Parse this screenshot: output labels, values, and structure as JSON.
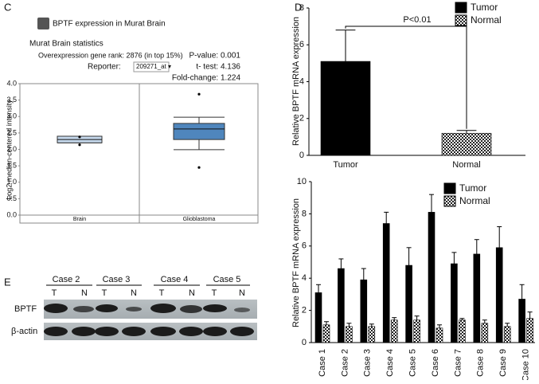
{
  "panels": [
    "C",
    "D",
    "E"
  ],
  "chart_data": [
    {
      "type": "box",
      "title": "BPTF expression in Murat Brain",
      "subtitle": "Murat Brain statistics",
      "annotations": [
        "Overexpression gene rank: 2876 (in top 15%)",
        "Reporter:",
        "209271_at ▾",
        "P-value: 0.001",
        "t- test: 4.136",
        "Fold-change: 1.224"
      ],
      "ylabel": "Log2 median-centered intensity",
      "categories": [
        "Brain",
        "Glioblastoma"
      ],
      "boxes": [
        {
          "min": 2.2,
          "q1": 2.2,
          "median": 2.3,
          "q3": 2.4,
          "max": 2.4,
          "outliers": [
            2.38,
            2.14
          ],
          "color": "#c5d8ec"
        },
        {
          "min": 1.99,
          "q1": 2.3,
          "median": 2.62,
          "q3": 2.79,
          "max": 2.98,
          "outliers": [
            3.68,
            1.45
          ],
          "color": "#4f86bd"
        }
      ],
      "ylim": [
        0,
        4
      ],
      "yticks": [
        {
          "value": 0,
          "label": "0.0"
        },
        0.5,
        {
          "value": 1,
          "label": "1.0"
        },
        1.5,
        {
          "value": 2,
          "label": "2.0"
        },
        2.5,
        {
          "value": 3,
          "label": "3.0"
        },
        3.5,
        {
          "value": 4,
          "label": "4.0"
        }
      ]
    },
    {
      "type": "bar",
      "ylabel": "Relative BPTF mRNA expression",
      "annotations": [
        "P<0.01"
      ],
      "categories": [
        "Tumor",
        "Normal"
      ],
      "series": [
        {
          "name": "Tumor",
          "color": "#000000",
          "values": [
            5.1,
            null
          ],
          "errors": [
            1.7,
            null
          ]
        },
        {
          "name": "Normal",
          "color": "#000000",
          "pattern": "checkered",
          "values": [
            null,
            1.2
          ],
          "errors": [
            null,
            0.15
          ]
        }
      ],
      "ylim": [
        0,
        8
      ],
      "yticks": [
        0,
        2,
        4,
        6,
        8
      ]
    },
    {
      "type": "bar",
      "ylabel": "Relative BPTF mRNA expression",
      "categories": [
        "Case 1",
        "Case 2",
        "Case 3",
        "Case 4",
        "Case 5",
        "Case 6",
        "Case 7",
        "Case 8",
        "Case 9",
        "Case 10"
      ],
      "series": [
        {
          "name": "Tumor",
          "color": "#000000",
          "values": [
            3.1,
            4.6,
            3.9,
            7.4,
            4.8,
            8.1,
            4.9,
            5.5,
            5.9,
            2.7
          ],
          "errors": [
            0.5,
            0.6,
            0.7,
            0.7,
            1.1,
            1.1,
            0.7,
            0.9,
            1.3,
            0.9
          ]
        },
        {
          "name": "Normal",
          "color": "#000000",
          "pattern": "checkered",
          "values": [
            1.1,
            1.0,
            1.0,
            1.4,
            1.4,
            0.9,
            1.4,
            1.2,
            1.0,
            1.5
          ],
          "errors": [
            0.2,
            0.2,
            0.15,
            0.15,
            0.25,
            0.2,
            0.1,
            0.2,
            0.2,
            0.4
          ]
        }
      ],
      "ylim": [
        0,
        10
      ],
      "yticks": [
        0,
        2,
        4,
        6,
        8,
        10
      ]
    }
  ],
  "western_blot": {
    "cases": [
      "Case 2",
      "Case 3",
      "Case 4",
      "Case 5"
    ],
    "lanes": [
      "T",
      "N"
    ],
    "rows": [
      "BPTF",
      "β-actin"
    ]
  }
}
